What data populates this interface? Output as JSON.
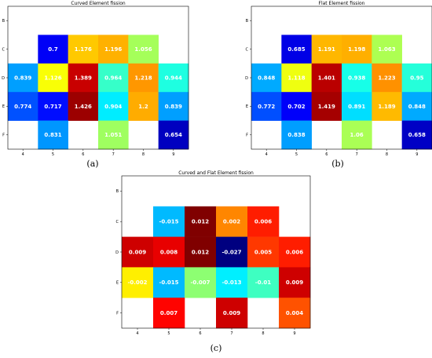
{
  "colors": {
    "text_on_cell": "#ffffff",
    "frame": "#000000"
  },
  "sublabels": [
    "(a)",
    "(b)",
    "(c)"
  ],
  "chart_data": [
    {
      "type": "heatmap",
      "title": "Curved Element fission",
      "colormap": "jet",
      "value_range": [
        0.6,
        1.45
      ],
      "x_ticks": [
        "4",
        "5",
        "6",
        "7",
        "8",
        "9"
      ],
      "y_ticks": [
        "B",
        "C",
        "D",
        "E",
        "F"
      ],
      "grid": false,
      "cells": [
        {
          "x": "5",
          "y": "C",
          "value": 0.7,
          "label": "0.7"
        },
        {
          "x": "6",
          "y": "C",
          "value": 1.176,
          "label": "1.176"
        },
        {
          "x": "7",
          "y": "C",
          "value": 1.196,
          "label": "1.196"
        },
        {
          "x": "8",
          "y": "C",
          "value": 1.056,
          "label": "1.056"
        },
        {
          "x": "4",
          "y": "D",
          "value": 0.839,
          "label": "0.839"
        },
        {
          "x": "5",
          "y": "D",
          "value": 1.126,
          "label": "1.126"
        },
        {
          "x": "6",
          "y": "D",
          "value": 1.389,
          "label": "1.389"
        },
        {
          "x": "7",
          "y": "D",
          "value": 0.964,
          "label": "0.964"
        },
        {
          "x": "8",
          "y": "D",
          "value": 1.218,
          "label": "1.218"
        },
        {
          "x": "9",
          "y": "D",
          "value": 0.944,
          "label": "0.944"
        },
        {
          "x": "4",
          "y": "E",
          "value": 0.774,
          "label": "0.774"
        },
        {
          "x": "5",
          "y": "E",
          "value": 0.717,
          "label": "0.717"
        },
        {
          "x": "6",
          "y": "E",
          "value": 1.426,
          "label": "1.426"
        },
        {
          "x": "7",
          "y": "E",
          "value": 0.904,
          "label": "0.904"
        },
        {
          "x": "8",
          "y": "E",
          "value": 1.2,
          "label": "1.2"
        },
        {
          "x": "9",
          "y": "E",
          "value": 0.839,
          "label": "0.839"
        },
        {
          "x": "5",
          "y": "F",
          "value": 0.831,
          "label": "0.831"
        },
        {
          "x": "7",
          "y": "F",
          "value": 1.051,
          "label": "1.051"
        },
        {
          "x": "9",
          "y": "F",
          "value": 0.654,
          "label": "0.654"
        }
      ]
    },
    {
      "type": "heatmap",
      "title": "Flat Element fission",
      "colormap": "jet",
      "value_range": [
        0.6,
        1.45
      ],
      "x_ticks": [
        "4",
        "5",
        "6",
        "7",
        "8",
        "9"
      ],
      "y_ticks": [
        "B",
        "C",
        "D",
        "E",
        "F"
      ],
      "grid": false,
      "cells": [
        {
          "x": "5",
          "y": "C",
          "value": 0.685,
          "label": "0.685"
        },
        {
          "x": "6",
          "y": "C",
          "value": 1.191,
          "label": "1.191"
        },
        {
          "x": "7",
          "y": "C",
          "value": 1.198,
          "label": "1.198"
        },
        {
          "x": "8",
          "y": "C",
          "value": 1.063,
          "label": "1.063"
        },
        {
          "x": "4",
          "y": "D",
          "value": 0.848,
          "label": "0.848"
        },
        {
          "x": "5",
          "y": "D",
          "value": 1.118,
          "label": "1.118"
        },
        {
          "x": "6",
          "y": "D",
          "value": 1.401,
          "label": "1.401"
        },
        {
          "x": "7",
          "y": "D",
          "value": 0.938,
          "label": "0.938"
        },
        {
          "x": "8",
          "y": "D",
          "value": 1.223,
          "label": "1.223"
        },
        {
          "x": "9",
          "y": "D",
          "value": 0.95,
          "label": "0.95"
        },
        {
          "x": "4",
          "y": "E",
          "value": 0.772,
          "label": "0.772"
        },
        {
          "x": "5",
          "y": "E",
          "value": 0.702,
          "label": "0.702"
        },
        {
          "x": "6",
          "y": "E",
          "value": 1.419,
          "label": "1.419"
        },
        {
          "x": "7",
          "y": "E",
          "value": 0.891,
          "label": "0.891"
        },
        {
          "x": "8",
          "y": "E",
          "value": 1.189,
          "label": "1.189"
        },
        {
          "x": "9",
          "y": "E",
          "value": 0.848,
          "label": "0.848"
        },
        {
          "x": "5",
          "y": "F",
          "value": 0.838,
          "label": "0.838"
        },
        {
          "x": "7",
          "y": "F",
          "value": 1.06,
          "label": "1.06"
        },
        {
          "x": "9",
          "y": "F",
          "value": 0.658,
          "label": "0.658"
        }
      ]
    },
    {
      "type": "heatmap",
      "title": "Curved and Flat Element fission",
      "colormap": "jet",
      "value_range": [
        -0.027,
        0.012
      ],
      "x_ticks": [
        "4",
        "5",
        "6",
        "7",
        "8",
        "9"
      ],
      "y_ticks": [
        "B",
        "C",
        "D",
        "E",
        "F"
      ],
      "grid": false,
      "cells": [
        {
          "x": "5",
          "y": "C",
          "value": -0.015,
          "label": "-0.015"
        },
        {
          "x": "6",
          "y": "C",
          "value": 0.012,
          "label": "0.012"
        },
        {
          "x": "7",
          "y": "C",
          "value": 0.002,
          "label": "0.002"
        },
        {
          "x": "8",
          "y": "C",
          "value": 0.006,
          "label": "0.006"
        },
        {
          "x": "4",
          "y": "D",
          "value": 0.009,
          "label": "0.009"
        },
        {
          "x": "5",
          "y": "D",
          "value": 0.008,
          "label": "0.008"
        },
        {
          "x": "6",
          "y": "D",
          "value": 0.012,
          "label": "0.012"
        },
        {
          "x": "7",
          "y": "D",
          "value": -0.027,
          "label": "-0.027"
        },
        {
          "x": "8",
          "y": "D",
          "value": 0.005,
          "label": "0.005"
        },
        {
          "x": "9",
          "y": "D",
          "value": 0.006,
          "label": "0.006"
        },
        {
          "x": "4",
          "y": "E",
          "value": -0.002,
          "label": "-0.002"
        },
        {
          "x": "5",
          "y": "E",
          "value": -0.015,
          "label": "-0.015"
        },
        {
          "x": "6",
          "y": "E",
          "value": -0.007,
          "label": "-0.007"
        },
        {
          "x": "7",
          "y": "E",
          "value": -0.013,
          "label": "-0.013"
        },
        {
          "x": "8",
          "y": "E",
          "value": -0.01,
          "label": "-0.01"
        },
        {
          "x": "9",
          "y": "E",
          "value": 0.009,
          "label": "0.009"
        },
        {
          "x": "5",
          "y": "F",
          "value": 0.007,
          "label": "0.007"
        },
        {
          "x": "7",
          "y": "F",
          "value": 0.009,
          "label": "0.009"
        },
        {
          "x": "9",
          "y": "F",
          "value": 0.004,
          "label": "0.004"
        }
      ]
    }
  ]
}
